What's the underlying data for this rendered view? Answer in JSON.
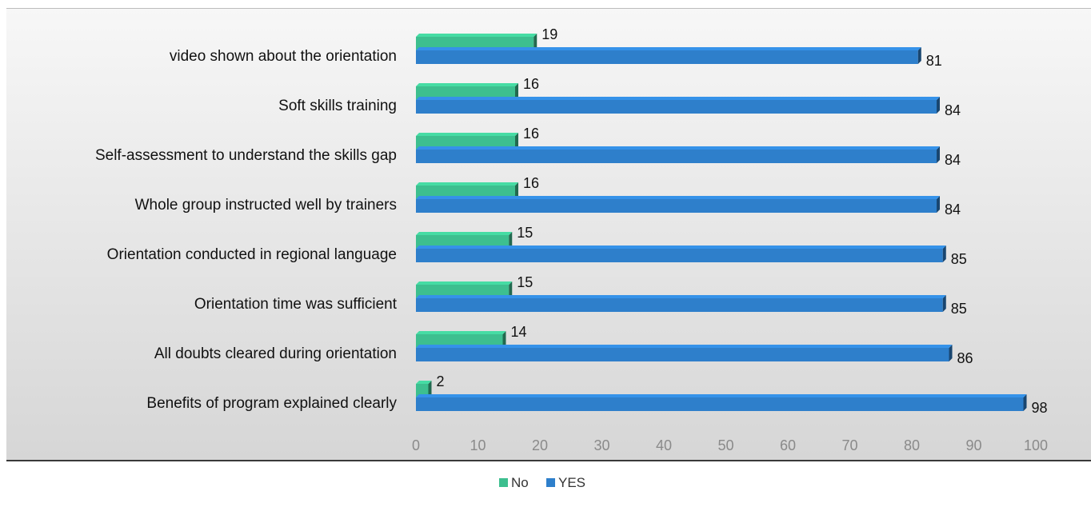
{
  "chart_data": {
    "type": "bar",
    "orientation": "horizontal",
    "categories": [
      "video shown about the orientation",
      "Soft skills training",
      "Self-assessment to understand the skills gap",
      "Whole group instructed well by trainers",
      "Orientation conducted in regional language",
      "Orientation time was sufficient",
      "All doubts cleared during orientation",
      "Benefits of program explained clearly"
    ],
    "series": [
      {
        "name": "No",
        "values": [
          19,
          16,
          16,
          16,
          15,
          15,
          14,
          2
        ],
        "color": "#3dbf8f"
      },
      {
        "name": "YES",
        "values": [
          81,
          84,
          84,
          84,
          85,
          85,
          86,
          98
        ],
        "color": "#2e7fcb"
      }
    ],
    "xlim": [
      0,
      100
    ],
    "xticks": [
      0,
      10,
      20,
      30,
      40,
      50,
      60,
      70,
      80,
      90,
      100
    ],
    "grid": false,
    "legend_position": "bottom",
    "data_labels": true
  }
}
